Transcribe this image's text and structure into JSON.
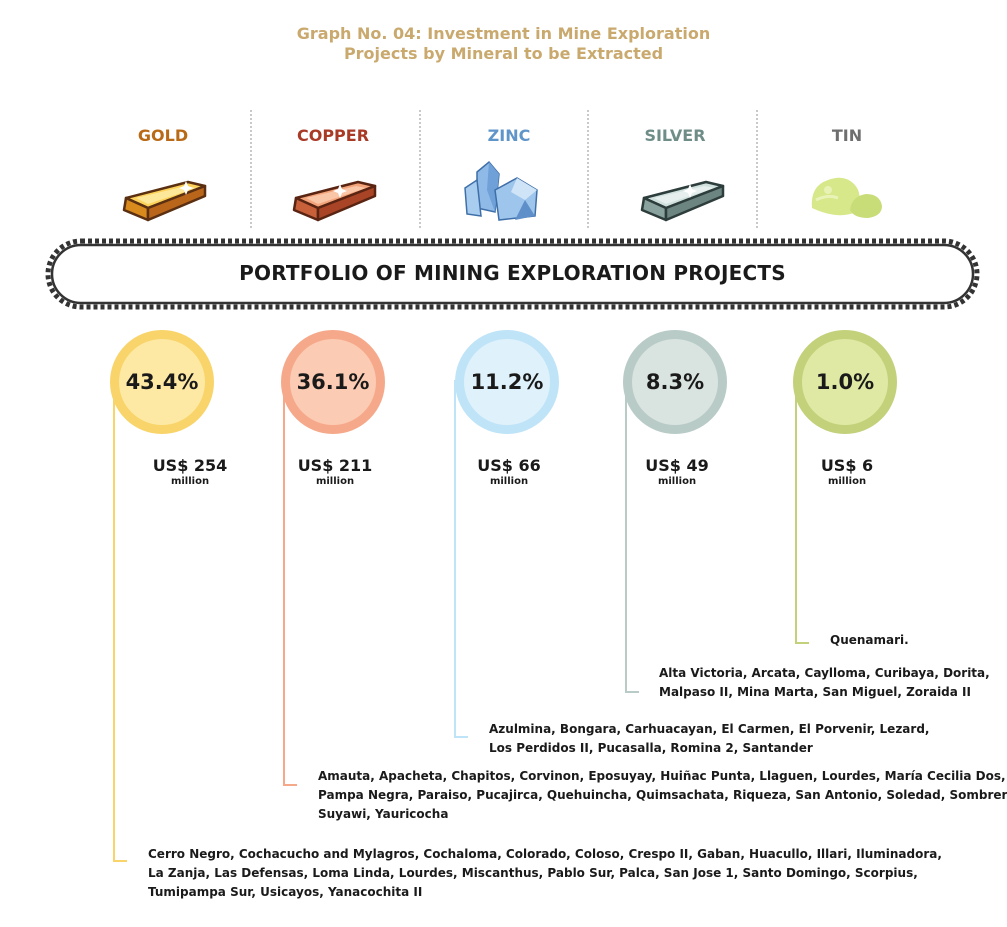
{
  "title": {
    "line1": "Graph No. 04: Investment in Mine Exploration",
    "line2": "Projects by Mineral to be Extracted",
    "color": "#c9a96e"
  },
  "banner": {
    "label": "PORTFOLIO OF MINING EXPLORATION PROJECTS"
  },
  "chart_data": {
    "type": "pie",
    "title": "Graph No. 04: Investment in Mine Exploration Projects by Mineral to be Extracted",
    "categories": [
      "GOLD",
      "COPPER",
      "ZINC",
      "SILVER",
      "TIN"
    ],
    "values": [
      43.4,
      36.1,
      11.2,
      8.3,
      1.0
    ],
    "value_unit": "%",
    "investment_values": [
      254,
      211,
      66,
      49,
      6
    ],
    "investment_unit": "million",
    "investment_prefix": "US$"
  },
  "minerals": [
    {
      "name": "GOLD",
      "label_color": "#b96a16",
      "circle_fill": "#fde9a3",
      "circle_ring": "#f8d46a",
      "percent": "43.4%",
      "amount": "US$ 254",
      "unit": "million",
      "icon": "gold-bar-icon",
      "projects": [
        "Cerro Negro, Cochacucho and Mylagros, Cochaloma, Colorado, Coloso, Crespo II, Gaban, Huacullo, Illari, Iluminadora,",
        "La Zanja, Las Defensas, Loma Linda, Lourdes, Miscanthus, Pablo Sur, Palca, San Jose 1, Santo Domingo, Scorpius,",
        "Tumipampa Sur, Usicayos, Yanacochita II"
      ]
    },
    {
      "name": "COPPER",
      "label_color": "#a83a26",
      "circle_fill": "#fccbb3",
      "circle_ring": "#f5a98a",
      "percent": "36.1%",
      "amount": "US$ 211",
      "unit": "million",
      "icon": "copper-bar-icon",
      "projects": [
        "Amauta, Apacheta, Chapitos, Corvinon, Eposuyay, Huiñac Punta, Llaguen, Lourdes, María Cecilia Dos,",
        "Pampa Negra, Paraiso, Pucajirca, Quehuincha, Quimsachata, Riqueza, San Antonio, Soledad, Sombrero,",
        "Suyawi, Yauricocha"
      ]
    },
    {
      "name": "ZINC",
      "label_color": "#5f95c9",
      "circle_fill": "#dff1fb",
      "circle_ring": "#bfe4f7",
      "percent": "11.2%",
      "amount": "US$ 66",
      "unit": "million",
      "icon": "zinc-crystal-icon",
      "projects": [
        "Azulmina, Bongara, Carhuacayan, El Carmen, El Porvenir, Lezard,",
        "Los Perdidos II, Pucasalla, Romina 2, Santander"
      ]
    },
    {
      "name": "SILVER",
      "label_color": "#6f8d87",
      "circle_fill": "#d9e3e0",
      "circle_ring": "#b8cbc6",
      "percent": "8.3%",
      "amount": "US$ 49",
      "unit": "million",
      "icon": "silver-bar-icon",
      "projects": [
        "Alta Victoria, Arcata, Caylloma, Curibaya, Dorita,",
        "Malpaso II, Mina Marta, San Miguel, Zoraida II"
      ]
    },
    {
      "name": "TIN",
      "label_color": "#6e6e6e",
      "circle_fill": "#dfe9a3",
      "circle_ring": "#c2d17a",
      "percent": "1.0%",
      "amount": "US$ 6",
      "unit": "million",
      "icon": "tin-ore-icon",
      "projects": [
        "Quenamari."
      ]
    }
  ]
}
